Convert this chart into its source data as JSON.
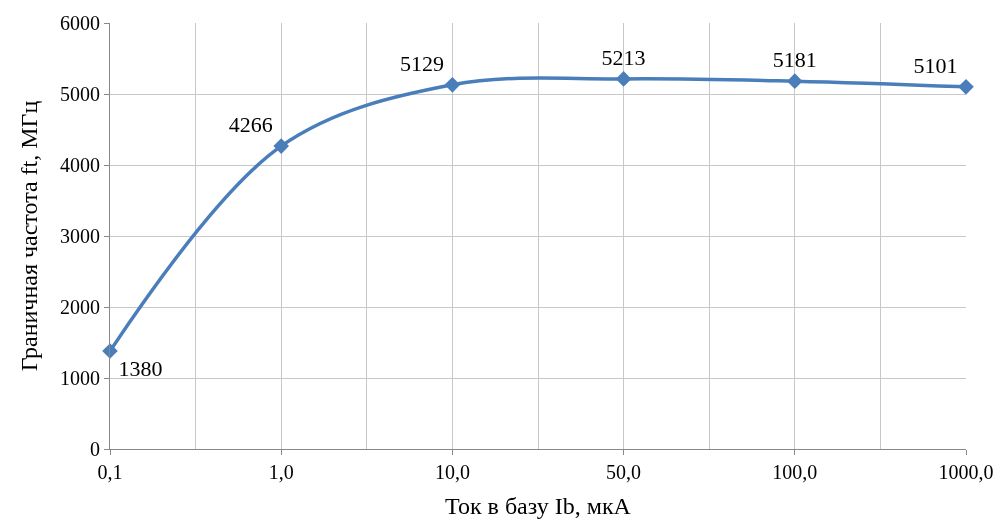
{
  "chart_data": {
    "type": "line",
    "xlabel": "Ток в базу Ib, мкА",
    "ylabel": "Граничная частота ft, МГц",
    "categories": [
      "0,1",
      "1,0",
      "10,0",
      "50,0",
      "100,0",
      "1000,0"
    ],
    "series": [
      {
        "color": "#4a7ebb",
        "values": [
          1380,
          4266,
          5129,
          5213,
          5181,
          5101
        ]
      }
    ],
    "ylim": [
      0,
      6000
    ],
    "yticks": [
      0,
      1000,
      2000,
      3000,
      4000,
      5000,
      6000
    ],
    "grid": true,
    "marker": "diamond",
    "line_style": "solid",
    "data_labels": true,
    "legend": false
  }
}
